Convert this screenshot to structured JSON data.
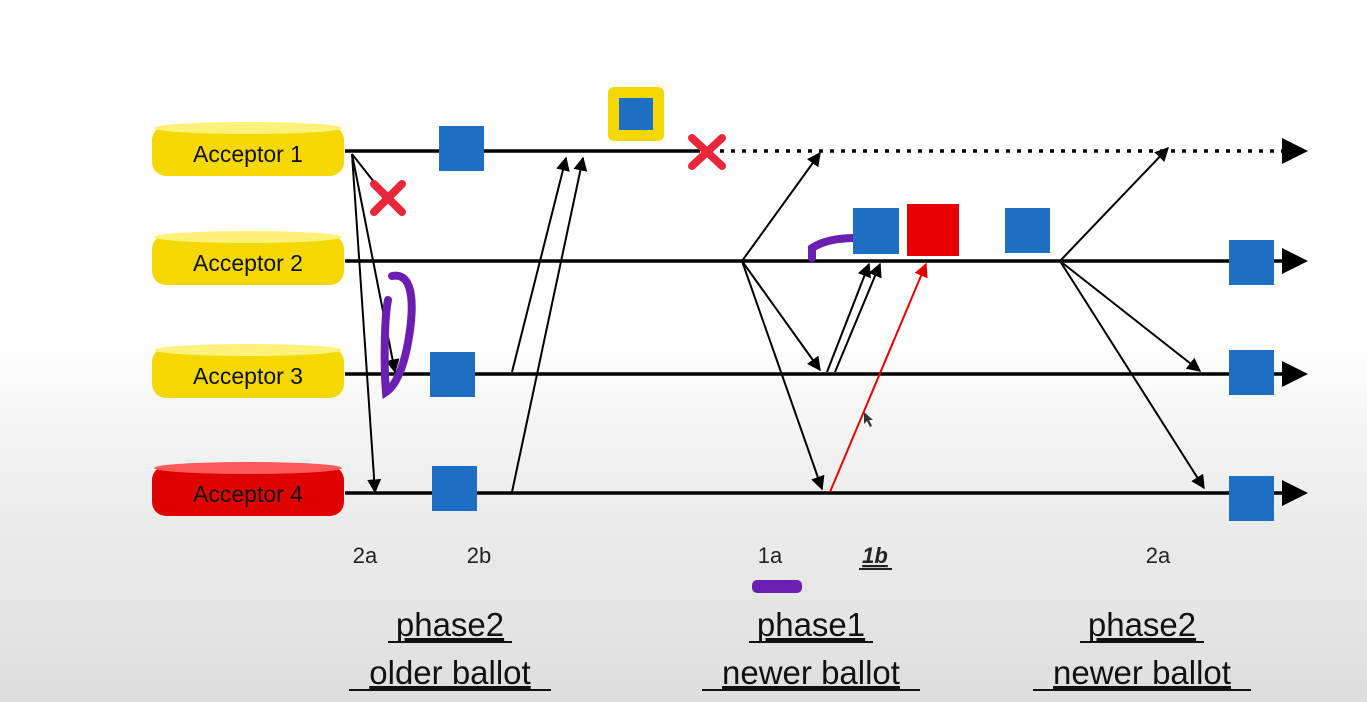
{
  "acceptors": [
    {
      "label": "Acceptor 1",
      "color": "#f5d800"
    },
    {
      "label": "Acceptor 2",
      "color": "#f5d800"
    },
    {
      "label": "Acceptor 3",
      "color": "#f5d800"
    },
    {
      "label": "Acceptor 4",
      "color": "#e00000"
    }
  ],
  "steps": [
    {
      "label": "2a",
      "emphasis": false
    },
    {
      "label": "2b",
      "emphasis": false
    },
    {
      "label": "1a",
      "emphasis": false
    },
    {
      "label": "1b",
      "emphasis": true
    },
    {
      "label": "2a",
      "emphasis": false
    }
  ],
  "phases": [
    {
      "line1": "phase2",
      "line2": "older ballot"
    },
    {
      "line1": "phase1",
      "line2": "newer ballot"
    },
    {
      "line1": "phase2",
      "line2": "newer ballot"
    }
  ],
  "colors": {
    "value_blue": "#1e6fc4",
    "value_red": "#e60000",
    "failure_mark": "#e8283a",
    "annotation_purple": "#6a1fb0",
    "highlight_yellow": "#f5d800",
    "red_message": "#e60000"
  },
  "icons": {
    "failure": "cross-mark-icon",
    "value": "value-square",
    "timeline_end": "arrowhead-icon"
  }
}
